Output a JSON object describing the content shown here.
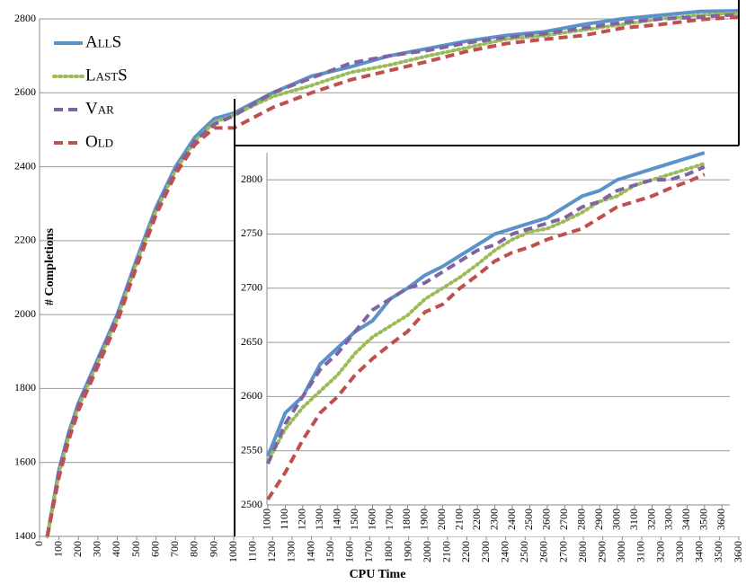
{
  "chart_data": [
    {
      "type": "line",
      "xlabel": "CPU Time",
      "ylabel": "# Completions",
      "xlim": [
        0,
        3600
      ],
      "ylim": [
        1400,
        2800
      ],
      "xticks": [
        0,
        100,
        200,
        300,
        400,
        500,
        600,
        700,
        800,
        900,
        1000,
        1100,
        1200,
        1300,
        1400,
        1500,
        1600,
        1700,
        1800,
        1900,
        2000,
        2100,
        2200,
        2300,
        2400,
        2500,
        2600,
        2700,
        2800,
        2900,
        3000,
        3100,
        3200,
        3300,
        3400,
        3500,
        3600
      ],
      "yticks": [
        1400,
        1600,
        1800,
        2000,
        2200,
        2400,
        2600,
        2800
      ],
      "grid": true,
      "legend": "upper left",
      "x": [
        40,
        100,
        150,
        200,
        300,
        400,
        500,
        600,
        700,
        800,
        900,
        1000,
        1200,
        1400,
        1600,
        1800,
        2000,
        2200,
        2400,
        2600,
        2800,
        3000,
        3200,
        3400,
        3600
      ],
      "series": [
        {
          "name": "AllS",
          "color": "#5b93c9",
          "style": "solid",
          "values": [
            1400,
            1580,
            1680,
            1760,
            1880,
            2000,
            2150,
            2290,
            2400,
            2480,
            2530,
            2545,
            2600,
            2645,
            2670,
            2700,
            2720,
            2740,
            2755,
            2765,
            2785,
            2800,
            2810,
            2820,
            2822
          ]
        },
        {
          "name": "LastS",
          "color": "#9bbb59",
          "style": "dotted",
          "values": [
            1400,
            1570,
            1670,
            1750,
            1870,
            1990,
            2140,
            2280,
            2390,
            2470,
            2520,
            2540,
            2590,
            2620,
            2655,
            2675,
            2700,
            2722,
            2745,
            2755,
            2770,
            2785,
            2800,
            2810,
            2815
          ]
        },
        {
          "name": "Var",
          "color": "#8064a2",
          "style": "dashed",
          "values": [
            1400,
            1575,
            1675,
            1755,
            1875,
            1995,
            2140,
            2280,
            2390,
            2470,
            2515,
            2538,
            2600,
            2640,
            2680,
            2700,
            2715,
            2735,
            2750,
            2760,
            2775,
            2790,
            2800,
            2805,
            2812
          ]
        },
        {
          "name": "Old",
          "color": "#c0504d",
          "style": "dashed",
          "values": [
            1400,
            1560,
            1660,
            1740,
            1860,
            1980,
            2130,
            2270,
            2380,
            2460,
            2505,
            2505,
            2560,
            2600,
            2635,
            2660,
            2685,
            2712,
            2733,
            2745,
            2755,
            2775,
            2785,
            2798,
            2805
          ]
        }
      ]
    },
    {
      "type": "line",
      "xlim": [
        995,
        3645
      ],
      "ylim": [
        2500,
        2825
      ],
      "xticks": [
        1000,
        1100,
        1200,
        1300,
        1400,
        1500,
        1600,
        1700,
        1800,
        1900,
        2000,
        2100,
        2200,
        2300,
        2400,
        2500,
        2600,
        2700,
        2800,
        2900,
        3000,
        3100,
        3200,
        3300,
        3400,
        3500,
        3600
      ],
      "yticks": [
        2500,
        2550,
        2600,
        2650,
        2700,
        2750,
        2800
      ],
      "grid": true,
      "x": [
        1000,
        1100,
        1200,
        1300,
        1400,
        1500,
        1600,
        1700,
        1800,
        1900,
        2000,
        2100,
        2200,
        2300,
        2400,
        2500,
        2600,
        2700,
        2800,
        2900,
        3000,
        3100,
        3200,
        3300,
        3400,
        3500
      ],
      "series": [
        {
          "color": "#5b93c9",
          "style": "solid",
          "values": [
            2545,
            2585,
            2600,
            2630,
            2645,
            2660,
            2670,
            2690,
            2700,
            2712,
            2720,
            2730,
            2740,
            2750,
            2755,
            2760,
            2765,
            2775,
            2785,
            2790,
            2800,
            2805,
            2810,
            2815,
            2820,
            2825
          ]
        },
        {
          "color": "#9bbb59",
          "style": "dotted",
          "values": [
            2540,
            2570,
            2590,
            2605,
            2620,
            2640,
            2655,
            2665,
            2675,
            2690,
            2700,
            2710,
            2722,
            2735,
            2745,
            2752,
            2755,
            2762,
            2770,
            2780,
            2785,
            2795,
            2800,
            2805,
            2810,
            2815
          ]
        },
        {
          "color": "#8064a2",
          "style": "dashed",
          "values": [
            2538,
            2575,
            2600,
            2625,
            2640,
            2660,
            2680,
            2690,
            2700,
            2705,
            2715,
            2725,
            2735,
            2740,
            2750,
            2755,
            2760,
            2765,
            2775,
            2780,
            2790,
            2795,
            2800,
            2800,
            2805,
            2812
          ]
        },
        {
          "color": "#c0504d",
          "style": "dashed",
          "values": [
            2505,
            2530,
            2560,
            2585,
            2600,
            2620,
            2635,
            2648,
            2660,
            2678,
            2685,
            2700,
            2712,
            2725,
            2733,
            2738,
            2745,
            2750,
            2755,
            2765,
            2775,
            2780,
            2785,
            2792,
            2798,
            2805
          ]
        }
      ]
    }
  ]
}
